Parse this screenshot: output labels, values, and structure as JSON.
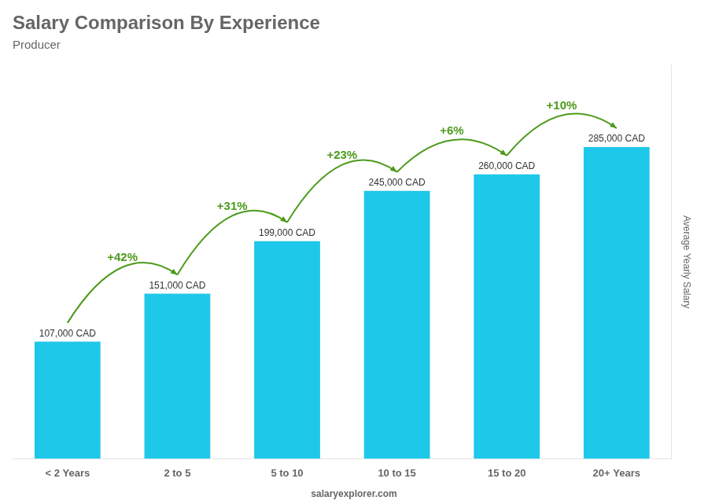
{
  "chart_data": {
    "type": "bar",
    "title": "Salary Comparison By Experience",
    "subtitle": "Producer",
    "ylabel": "Average Yearly Salary",
    "categories": [
      "< 2 Years",
      "2 to 5",
      "5 to 10",
      "10 to 15",
      "15 to 20",
      "20+ Years"
    ],
    "values": [
      107000,
      151000,
      199000,
      245000,
      260000,
      285000
    ],
    "value_labels": [
      "107,000 CAD",
      "151,000 CAD",
      "199,000 CAD",
      "245,000 CAD",
      "260,000 CAD",
      "285,000 CAD"
    ],
    "data_labels": true,
    "color": "#1ec8e8",
    "ylim": [
      0,
      360000
    ],
    "tick_labels": "x",
    "grid": false,
    "annotations": [
      {
        "text": "+42%",
        "from": "< 2 Years",
        "to": "2 to 5"
      },
      {
        "text": "+31%",
        "from": "2 to 5",
        "to": "5 to 10"
      },
      {
        "text": "+23%",
        "from": "5 to 10",
        "to": "10 to 15"
      },
      {
        "text": "+6%",
        "from": "10 to 15",
        "to": "15 to 20"
      },
      {
        "text": "+10%",
        "from": "15 to 20",
        "to": "20+ Years"
      }
    ],
    "watermark": "salaryexplorer.com"
  }
}
